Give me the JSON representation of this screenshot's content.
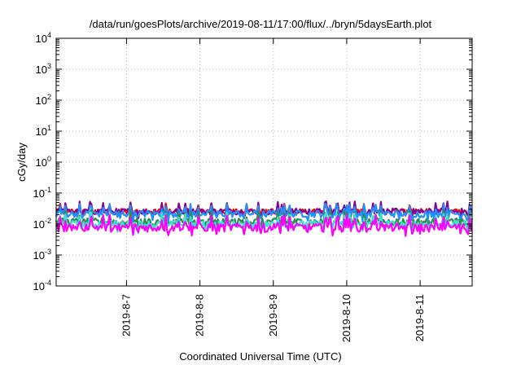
{
  "chart_data": {
    "type": "line",
    "title": "/data/run/goesPlots/archive/2019-08-11/17:00/flux/../bryn/5daysEarth.plot",
    "xlabel": "Coordinated Universal Time (UTC)",
    "ylabel": "cGy/day",
    "yscale": "log",
    "ylim": [
      0.0001,
      10000
    ],
    "xlim": [
      "2019-08-06 01:00",
      "2019-08-11 17:00"
    ],
    "grid": true,
    "y_ticks": [
      {
        "base": "10",
        "exp": "-4"
      },
      {
        "base": "10",
        "exp": "-3"
      },
      {
        "base": "10",
        "exp": "-2"
      },
      {
        "base": "10",
        "exp": "-1"
      },
      {
        "base": "10",
        "exp": "0"
      },
      {
        "base": "10",
        "exp": "1"
      },
      {
        "base": "10",
        "exp": "2"
      },
      {
        "base": "10",
        "exp": "3"
      },
      {
        "base": "10",
        "exp": "4"
      }
    ],
    "x_ticks": [
      "2019-8-7",
      "2019-8-8",
      "2019-8-9",
      "2019-8-10",
      "2019-8-11"
    ],
    "series": [
      {
        "color": "#ff0000",
        "base": 0.026,
        "variation": 0.35,
        "min": 0.016,
        "max": 0.05
      },
      {
        "color": "#8b008b",
        "base": 0.026,
        "variation": 0.45,
        "min": 0.0075,
        "max": 0.06
      },
      {
        "color": "#1e90ff",
        "base": 0.022,
        "variation": 0.5,
        "min": 0.01,
        "max": 0.045
      },
      {
        "color": "#2e8b57",
        "base": 0.012,
        "variation": 0.55,
        "min": 0.006,
        "max": 0.04
      },
      {
        "color": "#40e0d0",
        "base": 0.01,
        "variation": 0.55,
        "min": 0.005,
        "max": 0.035
      },
      {
        "color": "#ff00ff",
        "base": 0.008,
        "variation": 0.6,
        "min": 0.0035,
        "max": 0.03
      }
    ]
  }
}
